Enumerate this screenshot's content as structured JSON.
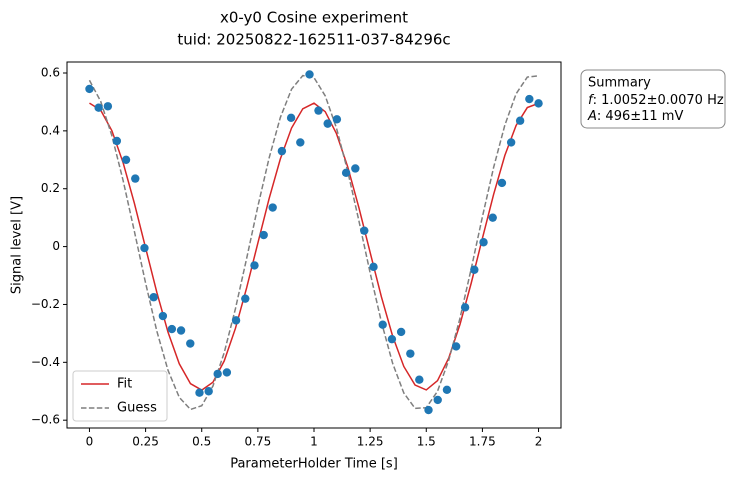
{
  "chart_data": {
    "type": "scatter",
    "title": "x0-y0 Cosine experiment",
    "subtitle": "tuid: 20250822-162511-037-84296c",
    "x_label": "ParameterHolder Time [s]",
    "y_label": "Signal level [V]",
    "xlim": [
      -0.1,
      2.1
    ],
    "ylim": [
      -0.627,
      0.638
    ],
    "xticks": [
      0,
      0.25,
      0.5,
      0.75,
      1,
      1.25,
      1.5,
      1.75,
      2
    ],
    "yticks": [
      {
        "value": -0.6,
        "label": "−0.6"
      },
      {
        "value": -0.4,
        "label": "−0.4"
      },
      {
        "value": -0.2,
        "label": "−0.2"
      },
      0,
      0.2,
      0.4,
      0.6
    ],
    "legend": "lower left",
    "points": {
      "color": "#1f77b4",
      "x": [
        0,
        0.041,
        0.082,
        0.122,
        0.163,
        0.204,
        0.245,
        0.286,
        0.327,
        0.367,
        0.408,
        0.449,
        0.49,
        0.531,
        0.571,
        0.612,
        0.653,
        0.694,
        0.735,
        0.776,
        0.816,
        0.857,
        0.898,
        0.939,
        0.98,
        1.02,
        1.061,
        1.102,
        1.143,
        1.184,
        1.224,
        1.265,
        1.306,
        1.347,
        1.388,
        1.429,
        1.469,
        1.51,
        1.551,
        1.592,
        1.633,
        1.673,
        1.714,
        1.755,
        1.796,
        1.837,
        1.878,
        1.918,
        1.959,
        2
      ],
      "values": [
        0.545,
        0.48,
        0.485,
        0.365,
        0.3,
        0.235,
        -0.005,
        -0.175,
        -0.24,
        -0.285,
        -0.29,
        -0.335,
        -0.505,
        -0.5,
        -0.44,
        -0.435,
        -0.255,
        -0.18,
        -0.065,
        0.04,
        0.135,
        0.33,
        0.445,
        0.36,
        0.595,
        0.47,
        0.425,
        0.44,
        0.255,
        0.27,
        0.055,
        -0.07,
        -0.27,
        -0.32,
        -0.295,
        -0.37,
        -0.46,
        -0.565,
        -0.53,
        -0.495,
        -0.345,
        -0.21,
        -0.08,
        0.015,
        0.1,
        0.22,
        0.36,
        0.435,
        0.51,
        0.495
      ]
    },
    "series": [
      {
        "name": "Fit",
        "color": "#d62728",
        "dash": false,
        "x": [
          0,
          0.05,
          0.1,
          0.15,
          0.2,
          0.25,
          0.3,
          0.35,
          0.4,
          0.45,
          0.5,
          0.55,
          0.6,
          0.65,
          0.7,
          0.75,
          0.8,
          0.85,
          0.9,
          0.95,
          1,
          1.05,
          1.1,
          1.15,
          1.2,
          1.25,
          1.3,
          1.35,
          1.4,
          1.45,
          1.5,
          1.55,
          1.6,
          1.65,
          1.7,
          1.75,
          1.8,
          1.85,
          1.9,
          1.95,
          2
        ],
        "values": [
          0.496,
          0.4715,
          0.4003,
          0.2896,
          0.1502,
          -0.0041,
          -0.1579,
          -0.2962,
          -0.405,
          -0.4739,
          -0.4959,
          -0.4689,
          -0.3955,
          -0.2829,
          -0.1424,
          0.0122,
          0.1656,
          0.3026,
          0.4097,
          0.4763,
          0.4957,
          0.4662,
          0.3906,
          0.2762,
          0.1346,
          -0.0203,
          -0.1732,
          -0.309,
          -0.4143,
          -0.4785,
          -0.4954,
          -0.4634,
          -0.3854,
          -0.2694,
          -0.1267,
          0.0285,
          0.1808,
          0.3153,
          0.4186,
          0.4806,
          0.495
        ]
      },
      {
        "name": "Guess",
        "color": "#7f7f7f",
        "dash": true,
        "x": [
          0,
          0.05,
          0.1,
          0.15,
          0.2,
          0.25,
          0.3,
          0.35,
          0.4,
          0.45,
          0.5,
          0.55,
          0.6,
          0.65,
          0.7,
          0.75,
          0.8,
          0.85,
          0.9,
          0.95,
          1,
          1.05,
          1.1,
          1.15,
          1.2,
          1.25,
          1.3,
          1.35,
          1.4,
          1.45,
          1.5,
          1.55,
          1.6,
          1.65,
          1.7,
          1.75,
          1.8,
          1.85,
          1.9,
          1.95,
          2
        ],
        "values": [
          0.575,
          0.502,
          0.383,
          0.228,
          0.053,
          -0.126,
          -0.292,
          -0.428,
          -0.521,
          -0.563,
          -0.55,
          -0.482,
          -0.367,
          -0.215,
          -0.041,
          0.139,
          0.306,
          0.446,
          0.544,
          0.591,
          0.584,
          0.521,
          0.41,
          0.261,
          0.089,
          -0.091,
          -0.26,
          -0.403,
          -0.506,
          -0.559,
          -0.557,
          -0.5,
          -0.393,
          -0.248,
          -0.077,
          0.103,
          0.274,
          0.42,
          0.528,
          0.586,
          0.59
        ]
      }
    ],
    "summary": {
      "heading": "Summary",
      "lines": [
        {
          "symbol": "f",
          "text": ": 1.0052±0.0070 Hz"
        },
        {
          "symbol": "A",
          "text": ": 496±11 mV"
        }
      ]
    }
  }
}
